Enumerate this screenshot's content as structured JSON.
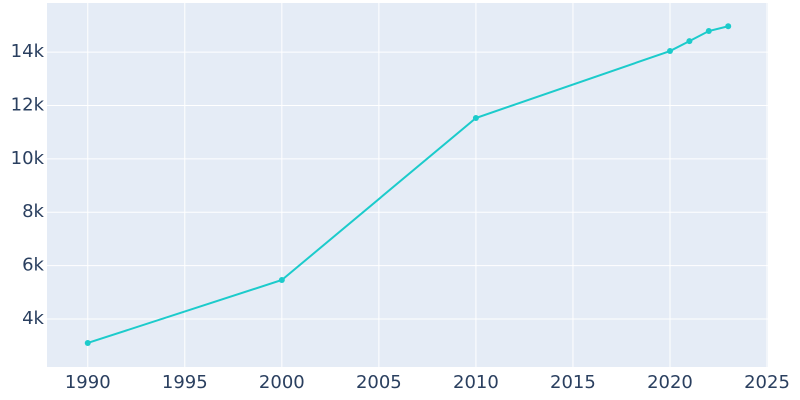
{
  "chart_data": {
    "type": "line",
    "x": [
      1990,
      2000,
      2010,
      2020,
      2021,
      2022,
      2023
    ],
    "series": [
      {
        "color": "#1ccbcb",
        "values": [
          3100,
          5460,
          11530,
          14040,
          14410,
          14790,
          14970
        ]
      }
    ],
    "xlim": [
      1987.9,
      2025.05
    ],
    "xticks": [
      1990,
      1995,
      2000,
      2005,
      2010,
      2015,
      2020,
      2025
    ],
    "ylim": [
      2200,
      15840
    ],
    "yticks": [
      {
        "value": 4000,
        "label": "4k"
      },
      {
        "value": 6000,
        "label": "6k"
      },
      {
        "value": 8000,
        "label": "8k"
      },
      {
        "value": 10000,
        "label": "10k"
      },
      {
        "value": 12000,
        "label": "12k"
      },
      {
        "value": 14000,
        "label": "14k"
      }
    ],
    "grid": true
  }
}
